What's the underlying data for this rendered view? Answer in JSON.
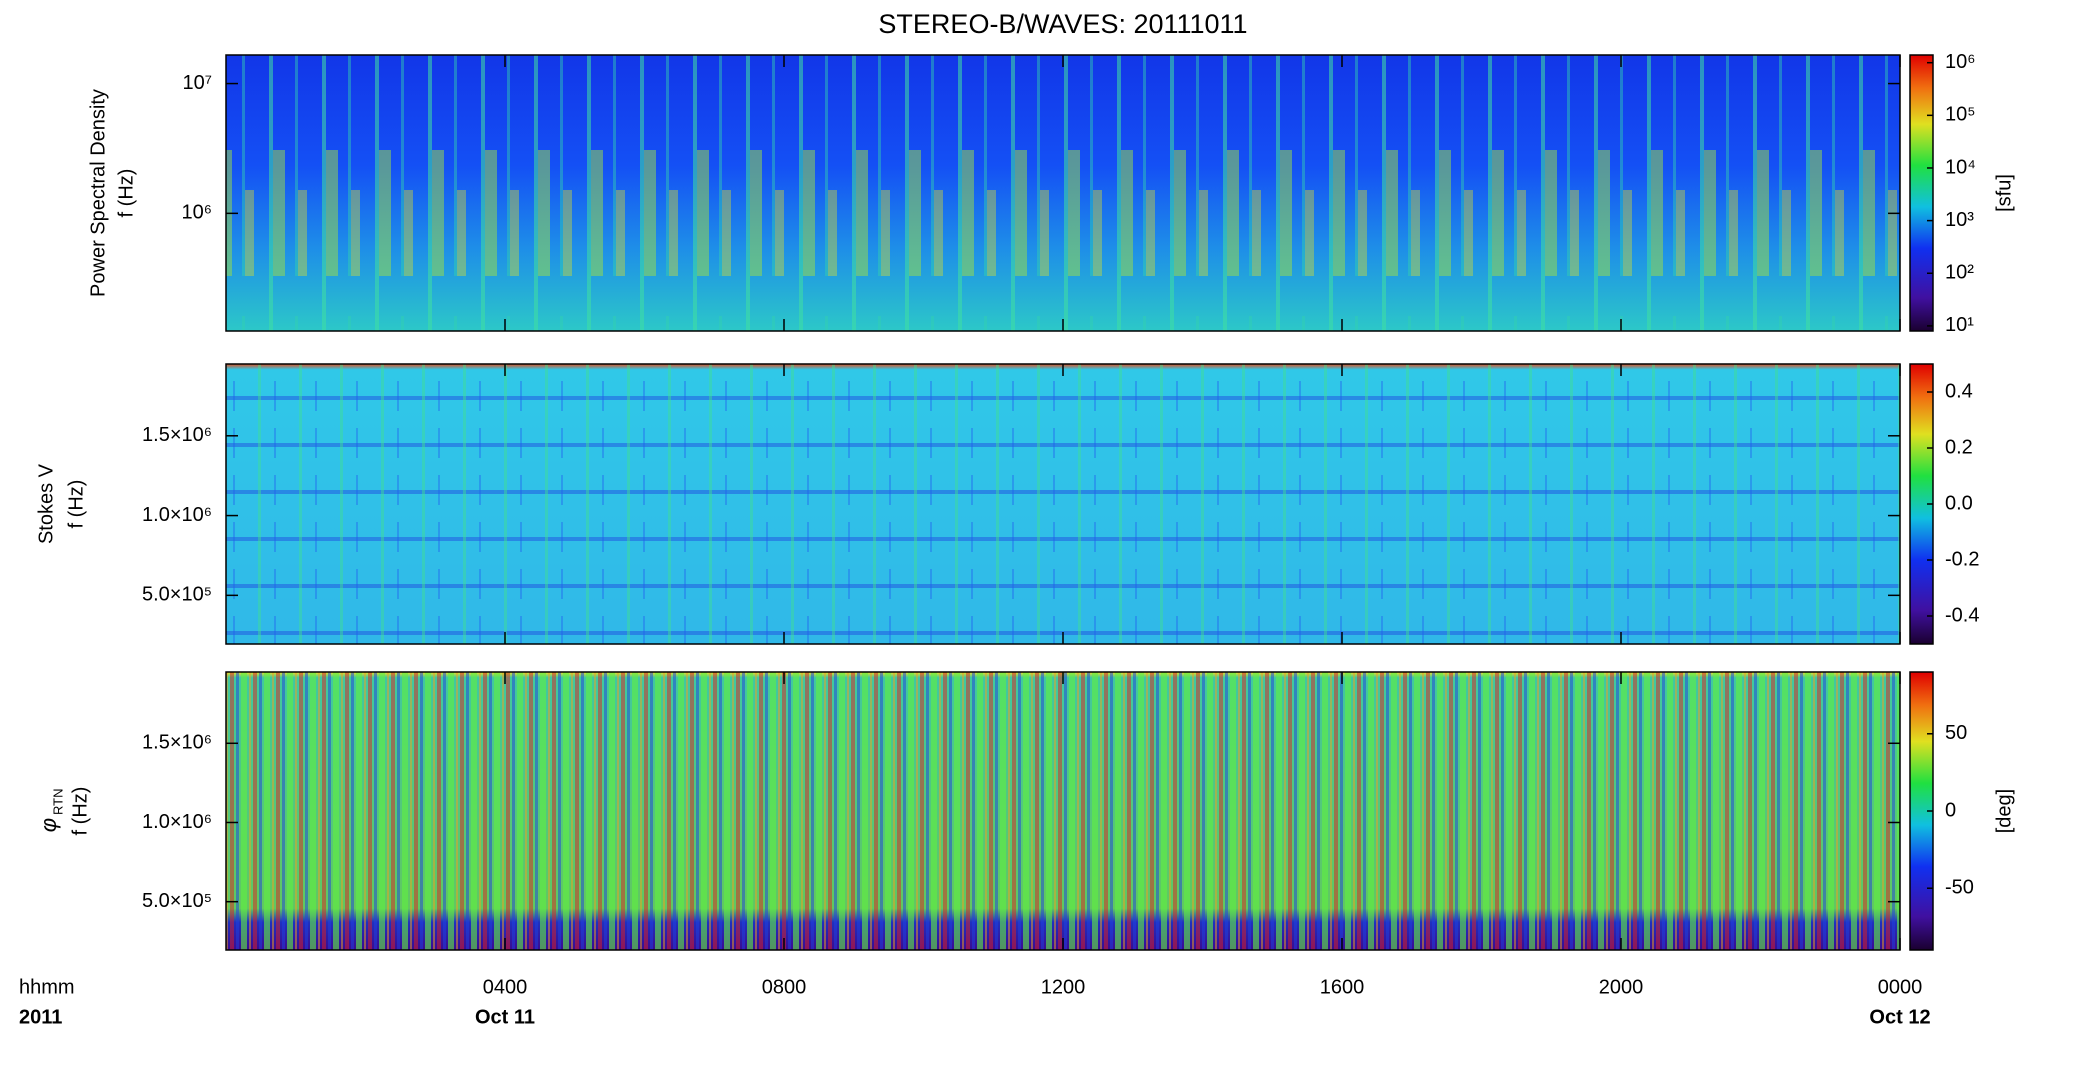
{
  "chart_data": [
    {
      "type": "heatmap",
      "title": "STEREO-B/WAVES: 20111011",
      "ylabel": [
        "Power Spectral Density",
        "f (Hz)"
      ],
      "ylog": true,
      "ylim": [
        124000,
        16600000
      ],
      "yticks": [
        {
          "value": 1000000,
          "label": "10⁶"
        },
        {
          "value": 10000000,
          "label": "10⁷"
        }
      ],
      "xlim": [
        0,
        24
      ],
      "xticks": [
        4,
        8,
        12,
        16,
        20,
        24
      ],
      "colorbar_label": "[sfu]",
      "colorbar_log": true,
      "clim": [
        8,
        1400000
      ],
      "colorbar_ticks": [
        {
          "value": 10,
          "label": "10¹"
        },
        {
          "value": 100,
          "label": "10²"
        },
        {
          "value": 1000,
          "label": "10³"
        },
        {
          "value": 10000,
          "label": "10⁴"
        },
        {
          "value": 100000,
          "label": "10⁵"
        },
        {
          "value": 1000000,
          "label": "10⁶"
        }
      ]
    },
    {
      "type": "heatmap",
      "ylabel": [
        "Stokes V",
        "f (Hz)"
      ],
      "ylog": false,
      "ylim": [
        195000,
        1950000
      ],
      "yticks": [
        {
          "value": 500000,
          "label": "5.0×10⁵"
        },
        {
          "value": 1000000,
          "label": "1.0×10⁶"
        },
        {
          "value": 1500000,
          "label": "1.5×10⁶"
        }
      ],
      "xlim": [
        0,
        24
      ],
      "xticks": [
        4,
        8,
        12,
        16,
        20,
        24
      ],
      "colorbar_log": false,
      "clim": [
        -0.5,
        0.5
      ],
      "colorbar_ticks": [
        -0.4,
        -0.2,
        {
          "value": 0,
          "label": "0.0"
        },
        0.2,
        0.4
      ]
    },
    {
      "type": "heatmap",
      "ylabel": [
        {
          "symbol": "φ",
          "subscript": "RTN"
        },
        "f (Hz)"
      ],
      "ylog": false,
      "ylim": [
        195000,
        1950000
      ],
      "yticks": [
        {
          "value": 500000,
          "label": "5.0×10⁵"
        },
        {
          "value": 1000000,
          "label": "1.0×10⁶"
        },
        {
          "value": 1500000,
          "label": "1.5×10⁶"
        }
      ],
      "xlim": [
        0,
        24
      ],
      "xticks": [
        {
          "value": 4,
          "label": "0400"
        },
        {
          "value": 8,
          "label": "0800"
        },
        {
          "value": 12,
          "label": "1200"
        },
        {
          "value": 16,
          "label": "1600"
        },
        {
          "value": 20,
          "label": "2000"
        },
        {
          "value": 24,
          "label": "0000"
        }
      ],
      "xdates": [
        {
          "value": 4,
          "label": "Oct 11"
        },
        {
          "value": 24,
          "label": "Oct 12"
        }
      ],
      "xlabel": [
        "hhmm",
        "2011"
      ],
      "colorbar_label": "[deg]",
      "colorbar_log": false,
      "clim": [
        -90,
        90
      ],
      "colorbar_ticks": [
        -50,
        0,
        50
      ]
    }
  ]
}
